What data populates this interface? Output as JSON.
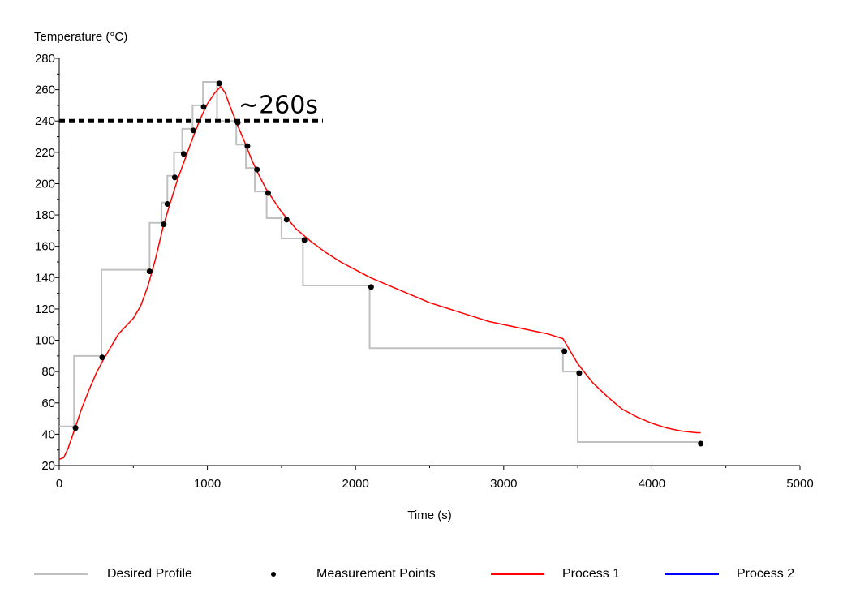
{
  "chart_data": {
    "type": "line",
    "xlabel": "Time (s)",
    "ylabel": "Temperature (°C)",
    "xlim": [
      0,
      5000
    ],
    "ylim": [
      20,
      280
    ],
    "x_ticks": [
      0,
      1000,
      2000,
      3000,
      4000,
      5000
    ],
    "y_ticks": [
      20,
      40,
      60,
      80,
      100,
      120,
      140,
      160,
      180,
      200,
      220,
      240,
      260,
      280
    ],
    "x_tick_labels": [
      "0",
      "1000",
      "2000",
      "3000",
      "4000",
      "5000"
    ],
    "y_tick_labels": [
      "20",
      "40",
      "60",
      "80",
      "100",
      "120",
      "140",
      "160",
      "180",
      "200",
      "220",
      "240",
      "260",
      "280"
    ],
    "grid": false,
    "legend_position": "bottom",
    "series": [
      {
        "name": "Desired Profile",
        "color": "#c0c0c0",
        "style": "step",
        "points": [
          [
            0,
            45
          ],
          [
            100,
            45
          ],
          [
            100,
            90
          ],
          [
            285,
            90
          ],
          [
            285,
            145
          ],
          [
            610,
            145
          ],
          [
            610,
            175
          ],
          [
            690,
            175
          ],
          [
            690,
            188
          ],
          [
            730,
            188
          ],
          [
            730,
            205
          ],
          [
            775,
            205
          ],
          [
            775,
            220
          ],
          [
            830,
            220
          ],
          [
            830,
            235
          ],
          [
            900,
            235
          ],
          [
            900,
            250
          ],
          [
            970,
            250
          ],
          [
            970,
            265
          ],
          [
            1065,
            265
          ],
          [
            1065,
            240
          ],
          [
            1195,
            240
          ],
          [
            1195,
            225
          ],
          [
            1260,
            225
          ],
          [
            1260,
            210
          ],
          [
            1320,
            210
          ],
          [
            1320,
            195
          ],
          [
            1400,
            195
          ],
          [
            1400,
            178
          ],
          [
            1500,
            178
          ],
          [
            1500,
            165
          ],
          [
            1645,
            165
          ],
          [
            1645,
            135
          ],
          [
            2095,
            135
          ],
          [
            2095,
            95
          ],
          [
            3400,
            95
          ],
          [
            3400,
            80
          ],
          [
            3500,
            80
          ],
          [
            3500,
            35
          ],
          [
            4330,
            35
          ]
        ]
      },
      {
        "name": "Measurement Points",
        "color": "#000000",
        "style": "points",
        "points": [
          [
            110,
            44
          ],
          [
            290,
            89
          ],
          [
            610,
            144
          ],
          [
            705,
            174
          ],
          [
            730,
            187
          ],
          [
            780,
            204
          ],
          [
            840,
            219
          ],
          [
            905,
            234
          ],
          [
            975,
            249
          ],
          [
            1080,
            264
          ],
          [
            1205,
            239
          ],
          [
            1270,
            224
          ],
          [
            1335,
            209
          ],
          [
            1410,
            194
          ],
          [
            1535,
            177
          ],
          [
            1655,
            164
          ],
          [
            2105,
            134
          ],
          [
            3410,
            93
          ],
          [
            3510,
            79
          ],
          [
            4330,
            34
          ]
        ]
      },
      {
        "name": "Process 1",
        "color": "#ff0000",
        "style": "line",
        "points": [
          [
            0,
            24
          ],
          [
            30,
            25
          ],
          [
            60,
            31
          ],
          [
            100,
            42
          ],
          [
            150,
            56
          ],
          [
            200,
            68
          ],
          [
            250,
            79
          ],
          [
            300,
            88
          ],
          [
            350,
            96
          ],
          [
            400,
            104
          ],
          [
            450,
            109
          ],
          [
            500,
            114
          ],
          [
            550,
            122
          ],
          [
            600,
            135
          ],
          [
            650,
            152
          ],
          [
            700,
            172
          ],
          [
            750,
            188
          ],
          [
            800,
            203
          ],
          [
            850,
            216
          ],
          [
            900,
            229
          ],
          [
            950,
            241
          ],
          [
            1000,
            251
          ],
          [
            1050,
            258
          ],
          [
            1090,
            262
          ],
          [
            1120,
            258
          ],
          [
            1150,
            250
          ],
          [
            1200,
            238
          ],
          [
            1250,
            227
          ],
          [
            1300,
            215
          ],
          [
            1350,
            205
          ],
          [
            1400,
            196
          ],
          [
            1450,
            189
          ],
          [
            1500,
            182
          ],
          [
            1600,
            171
          ],
          [
            1700,
            163
          ],
          [
            1800,
            156
          ],
          [
            1900,
            150
          ],
          [
            2000,
            145
          ],
          [
            2100,
            140
          ],
          [
            2200,
            136
          ],
          [
            2300,
            132
          ],
          [
            2400,
            128
          ],
          [
            2500,
            124
          ],
          [
            2600,
            121
          ],
          [
            2700,
            118
          ],
          [
            2800,
            115
          ],
          [
            2900,
            112
          ],
          [
            3000,
            110
          ],
          [
            3100,
            108
          ],
          [
            3200,
            106
          ],
          [
            3300,
            104
          ],
          [
            3400,
            101
          ],
          [
            3450,
            93
          ],
          [
            3500,
            85
          ],
          [
            3600,
            73
          ],
          [
            3700,
            64
          ],
          [
            3800,
            56
          ],
          [
            3900,
            51
          ],
          [
            4000,
            47
          ],
          [
            4100,
            44
          ],
          [
            4200,
            42
          ],
          [
            4300,
            41
          ],
          [
            4330,
            41
          ]
        ]
      },
      {
        "name": "Process 2",
        "color": "#0000ff",
        "style": "line",
        "points": []
      }
    ],
    "annotations": [
      {
        "type": "hline",
        "y": 240,
        "x_start": 0,
        "x_end": 1780,
        "style": "dotted",
        "color": "#000000"
      },
      {
        "type": "text",
        "text": "~260s",
        "x": 1210,
        "y": 245
      }
    ]
  }
}
